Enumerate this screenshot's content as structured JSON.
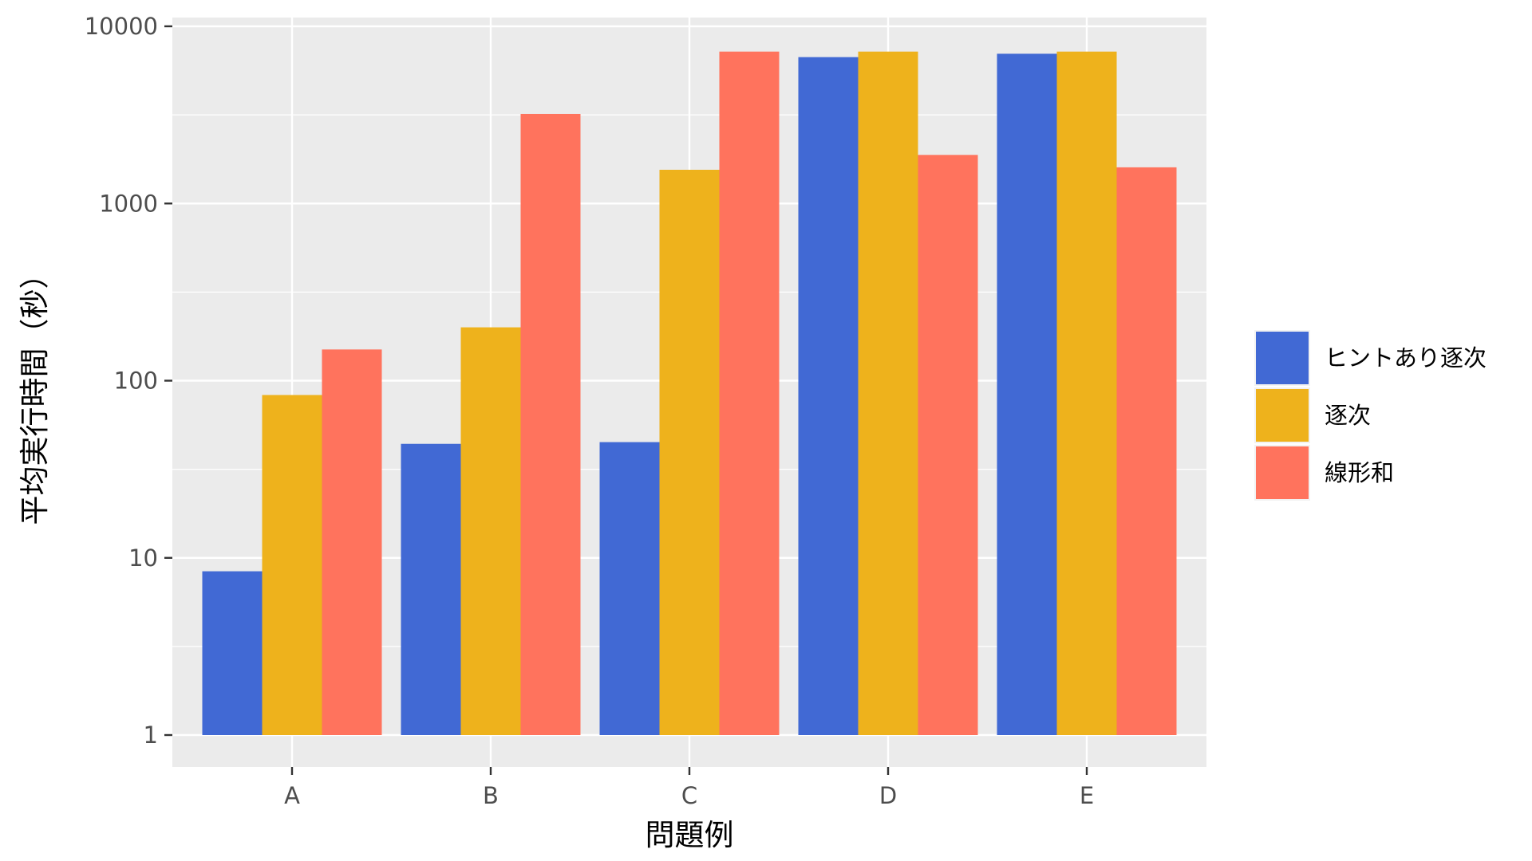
{
  "chart_data": {
    "type": "bar",
    "title": "",
    "xlabel": "問題例",
    "ylabel": "平均実行時間（秒）",
    "y_scale": "log10",
    "ylim": [
      1,
      10000
    ],
    "y_ticks": [
      1,
      10,
      100,
      1000,
      10000
    ],
    "y_tick_labels": [
      "1",
      "10",
      "100",
      "1000",
      "10000"
    ],
    "categories": [
      "A",
      "B",
      "C",
      "D",
      "E"
    ],
    "grid": true,
    "legend_position": "right",
    "series": [
      {
        "name": "ヒントあり逐次",
        "color": "#4169d4",
        "values": [
          8.4,
          44,
          45,
          6700,
          7000
        ]
      },
      {
        "name": "逐次",
        "color": "#eeb21c",
        "values": [
          83,
          200,
          1550,
          7200,
          7200
        ]
      },
      {
        "name": "線形和",
        "color": "#ff735d",
        "values": [
          150,
          3200,
          7200,
          1880,
          1600
        ]
      }
    ]
  }
}
